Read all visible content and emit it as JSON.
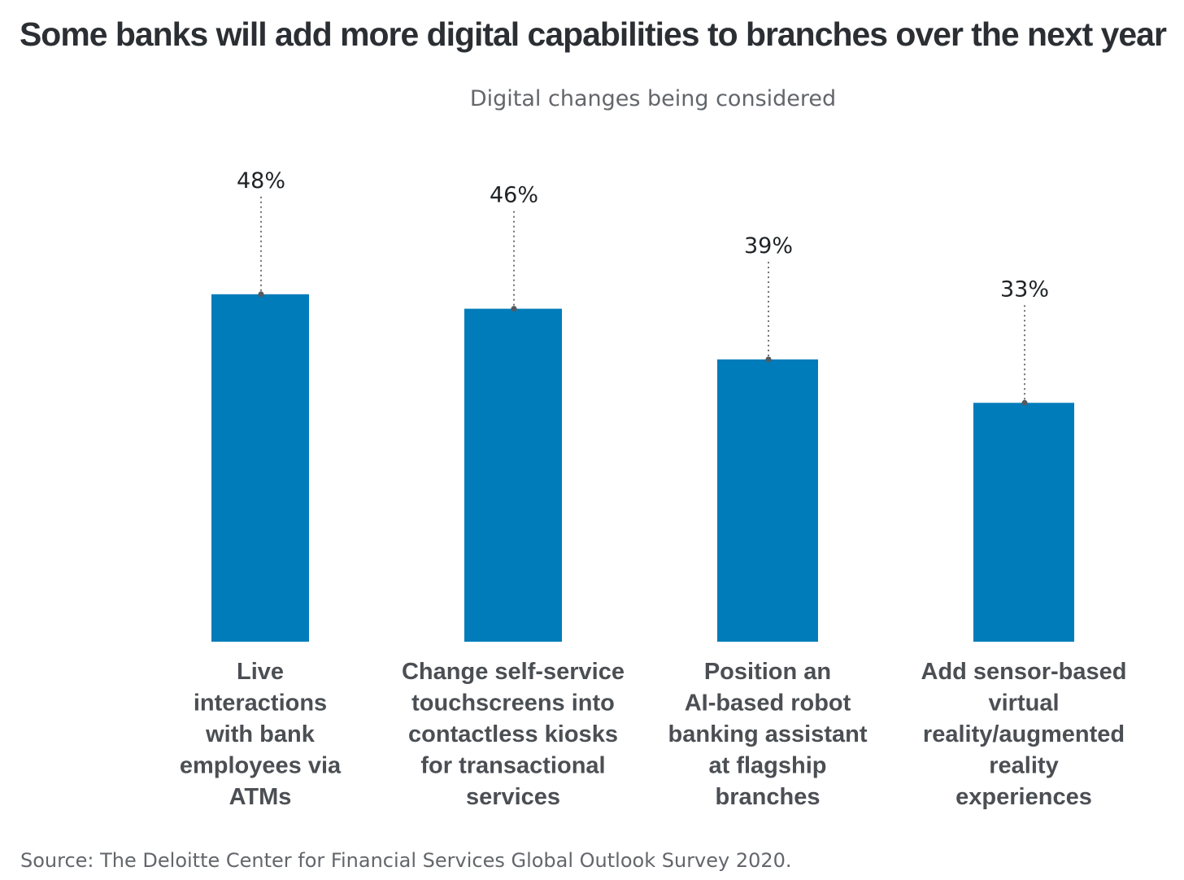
{
  "chart_data": {
    "type": "bar",
    "title": "Some banks will add more digital capabilities to branches over the next year",
    "subtitle": "Digital changes being considered",
    "categories": [
      [
        "Live",
        "interactions",
        "with bank",
        "employees via",
        "ATMs"
      ],
      [
        "Change self-service",
        "touchscreens into",
        "contactless kiosks",
        "for transactional",
        "services"
      ],
      [
        "Position an",
        "AI-based robot",
        "banking assistant",
        "at flagship",
        "branches"
      ],
      [
        "Add sensor-based",
        "virtual",
        "reality/augmented",
        "reality",
        "experiences"
      ]
    ],
    "values": [
      48,
      46,
      39,
      33
    ],
    "value_labels": [
      "48%",
      "46%",
      "39%",
      "33%"
    ],
    "unit": "%",
    "ylim": [
      0,
      100
    ],
    "grid": false,
    "legend": "none",
    "source": "Source: The Deloitte Center for Financial Services Global Outlook Survey 2020.",
    "colors": {
      "bar": "#007cba",
      "leader": "#6d7176",
      "title": "#2b2f33",
      "label": "#4b4f54"
    }
  }
}
